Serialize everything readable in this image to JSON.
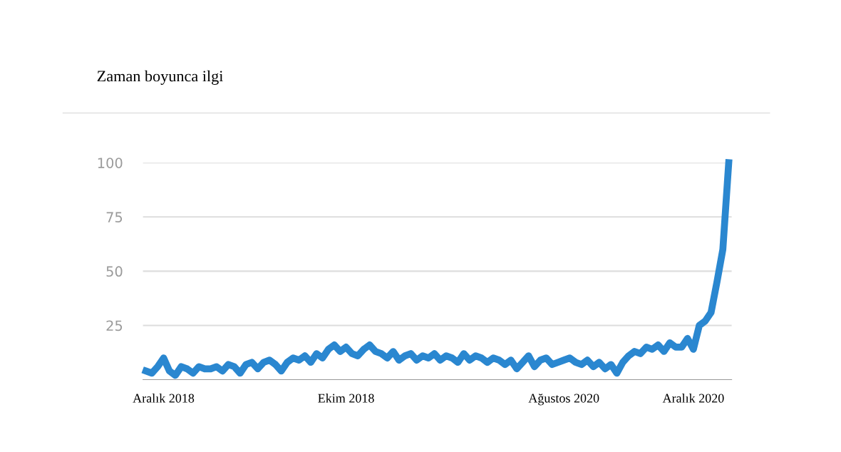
{
  "chart_data": {
    "type": "line",
    "title": "Zaman boyunca ilgi",
    "categories": [
      null,
      null,
      null,
      "Aralık 2018",
      null,
      null,
      null,
      null,
      null,
      null,
      null,
      null,
      null,
      null,
      null,
      null,
      null,
      null,
      null,
      null,
      null,
      null,
      null,
      null,
      null,
      null,
      null,
      null,
      null,
      null,
      null,
      null,
      null,
      null,
      "Ekim 2018",
      null,
      null,
      null,
      null,
      null,
      null,
      null,
      null,
      null,
      null,
      null,
      null,
      null,
      null,
      null,
      null,
      null,
      null,
      null,
      null,
      null,
      null,
      null,
      null,
      null,
      null,
      null,
      null,
      null,
      null,
      null,
      null,
      null,
      null,
      null,
      null,
      "Ağustos 2020",
      null,
      null,
      null,
      null,
      null,
      null,
      null,
      null,
      null,
      null,
      null,
      null,
      null,
      null,
      null,
      null,
      null,
      null,
      null,
      null,
      null,
      "Aralık 2020",
      null,
      null,
      null,
      null,
      null,
      null
    ],
    "series": [
      {
        "color": "#2a87d0",
        "values": [
          4,
          3,
          6,
          10,
          4,
          2,
          6,
          5,
          3,
          6,
          5,
          5,
          6,
          4,
          7,
          6,
          3,
          7,
          8,
          5,
          8,
          9,
          7,
          4,
          8,
          10,
          9,
          11,
          8,
          12,
          10,
          14,
          16,
          13,
          15,
          12,
          11,
          14,
          16,
          13,
          12,
          10,
          13,
          9,
          11,
          12,
          9,
          11,
          10,
          12,
          9,
          11,
          10,
          8,
          12,
          9,
          11,
          10,
          8,
          10,
          9,
          7,
          9,
          5,
          8,
          11,
          6,
          9,
          10,
          7,
          8,
          9,
          10,
          8,
          7,
          9,
          6,
          8,
          5,
          7,
          3,
          8,
          11,
          13,
          12,
          15,
          14,
          16,
          13,
          17,
          15,
          15,
          19,
          14,
          25,
          27,
          31,
          45,
          60,
          100
        ]
      }
    ],
    "ylim": [
      0,
      100
    ],
    "yticks": [
      25,
      50,
      75,
      100
    ],
    "grid": "y"
  }
}
